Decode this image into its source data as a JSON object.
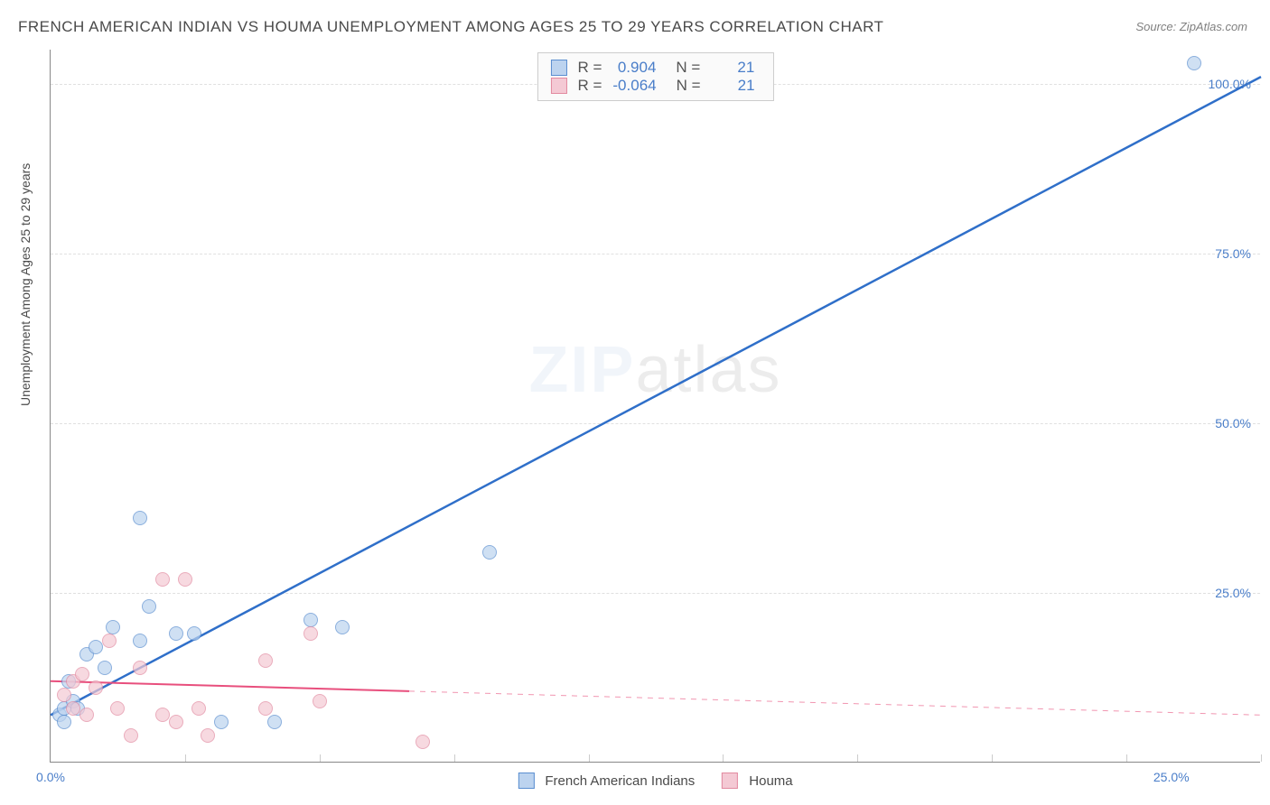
{
  "title": "FRENCH AMERICAN INDIAN VS HOUMA UNEMPLOYMENT AMONG AGES 25 TO 29 YEARS CORRELATION CHART",
  "source": "Source: ZipAtlas.com",
  "ylabel": "Unemployment Among Ages 25 to 29 years",
  "watermark_a": "ZIP",
  "watermark_b": "atlas",
  "chart": {
    "type": "scatter",
    "background_color": "#ffffff",
    "grid_color": "#e0e0e0",
    "axis_color": "#888888",
    "tick_label_color": "#4a7ec9",
    "title_color": "#4a4a4a",
    "title_fontsize": 17,
    "label_fontsize": 14,
    "xlim": [
      0,
      27
    ],
    "ylim": [
      0,
      105
    ],
    "yticks": [
      25,
      50,
      75,
      100
    ],
    "ytick_labels": [
      "25.0%",
      "50.0%",
      "75.0%",
      "100.0%"
    ],
    "xticks": [
      0,
      25
    ],
    "xtick_labels": [
      "0.0%",
      "25.0%"
    ],
    "x_minor_ticks": [
      3,
      6,
      9,
      12,
      15,
      18,
      21,
      24,
      27
    ]
  },
  "correlation_box": {
    "rows": [
      {
        "swatch_fill": "#bcd3ef",
        "swatch_border": "#5a8ed0",
        "r_label": "R =",
        "r_value": "0.904",
        "n_label": "N =",
        "n_value": "21"
      },
      {
        "swatch_fill": "#f4c9d4",
        "swatch_border": "#e28aa0",
        "r_label": "R =",
        "r_value": "-0.064",
        "n_label": "N =",
        "n_value": "21"
      }
    ]
  },
  "series": [
    {
      "name": "French American Indians",
      "marker_fill": "#bcd3ef",
      "marker_border": "#5a8ed0",
      "marker_opacity": 0.7,
      "marker_size": 16,
      "line_color": "#2f6fc9",
      "line_width": 2.5,
      "line_solid_end_x": 27,
      "line_start": {
        "x": 0,
        "y": 7
      },
      "line_end": {
        "x": 27,
        "y": 101
      },
      "points": [
        {
          "x": 0.2,
          "y": 7
        },
        {
          "x": 0.3,
          "y": 8
        },
        {
          "x": 0.3,
          "y": 6
        },
        {
          "x": 0.4,
          "y": 12
        },
        {
          "x": 0.5,
          "y": 9
        },
        {
          "x": 0.6,
          "y": 8
        },
        {
          "x": 0.8,
          "y": 16
        },
        {
          "x": 1.0,
          "y": 17
        },
        {
          "x": 1.2,
          "y": 14
        },
        {
          "x": 1.4,
          "y": 20
        },
        {
          "x": 2.0,
          "y": 18
        },
        {
          "x": 2.0,
          "y": 36
        },
        {
          "x": 2.2,
          "y": 23
        },
        {
          "x": 2.8,
          "y": 19
        },
        {
          "x": 3.2,
          "y": 19
        },
        {
          "x": 3.8,
          "y": 6
        },
        {
          "x": 5.0,
          "y": 6
        },
        {
          "x": 5.8,
          "y": 21
        },
        {
          "x": 6.5,
          "y": 20
        },
        {
          "x": 9.8,
          "y": 31
        },
        {
          "x": 25.5,
          "y": 103
        }
      ]
    },
    {
      "name": "Houma",
      "marker_fill": "#f4c9d4",
      "marker_border": "#e28aa0",
      "marker_opacity": 0.7,
      "marker_size": 16,
      "line_color": "#e84f7d",
      "line_width": 2,
      "line_solid_end_x": 8,
      "line_start": {
        "x": 0,
        "y": 12
      },
      "line_end": {
        "x": 27,
        "y": 7
      },
      "points": [
        {
          "x": 0.3,
          "y": 10
        },
        {
          "x": 0.5,
          "y": 12
        },
        {
          "x": 0.5,
          "y": 8
        },
        {
          "x": 0.7,
          "y": 13
        },
        {
          "x": 0.8,
          "y": 7
        },
        {
          "x": 1.0,
          "y": 11
        },
        {
          "x": 1.3,
          "y": 18
        },
        {
          "x": 1.5,
          "y": 8
        },
        {
          "x": 1.8,
          "y": 4
        },
        {
          "x": 2.0,
          "y": 14
        },
        {
          "x": 2.5,
          "y": 27
        },
        {
          "x": 2.5,
          "y": 7
        },
        {
          "x": 2.8,
          "y": 6
        },
        {
          "x": 3.0,
          "y": 27
        },
        {
          "x": 3.3,
          "y": 8
        },
        {
          "x": 3.5,
          "y": 4
        },
        {
          "x": 4.8,
          "y": 15
        },
        {
          "x": 4.8,
          "y": 8
        },
        {
          "x": 5.8,
          "y": 19
        },
        {
          "x": 6.0,
          "y": 9
        },
        {
          "x": 8.3,
          "y": 3
        }
      ]
    }
  ],
  "legend": [
    {
      "label": "French American Indians",
      "fill": "#bcd3ef",
      "border": "#5a8ed0"
    },
    {
      "label": "Houma",
      "fill": "#f4c9d4",
      "border": "#e28aa0"
    }
  ]
}
